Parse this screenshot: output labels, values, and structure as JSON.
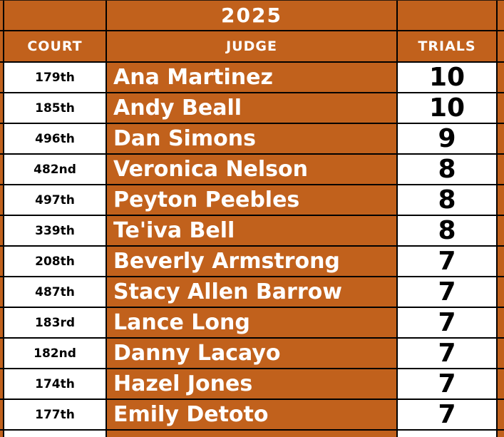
{
  "chart_data": {
    "type": "table",
    "title": "2025",
    "columns": [
      "COURT",
      "JUDGE",
      "TRIALS"
    ],
    "rows": [
      [
        "179th",
        "Ana Martinez",
        10
      ],
      [
        "185th",
        "Andy Beall",
        10
      ],
      [
        "496th",
        "Dan Simons",
        9
      ],
      [
        "482nd",
        "Veronica Nelson",
        8
      ],
      [
        "497th",
        "Peyton Peebles",
        8
      ],
      [
        "339th",
        "Te'iva Bell",
        8
      ],
      [
        "208th",
        "Beverly Armstrong",
        7
      ],
      [
        "487th",
        "Stacy Allen Barrow",
        7
      ],
      [
        "183rd",
        "Lance Long",
        7
      ],
      [
        "182nd",
        "Danny Lacayo",
        7
      ],
      [
        "174th",
        "Hazel Jones",
        7
      ],
      [
        "177th",
        "Emily Detoto",
        7
      ]
    ],
    "layout": {
      "grid": "on",
      "title_position": "merged cell over JUDGE column",
      "court_column_fill": "white",
      "judge_column_fill": "orange",
      "trials_column_fill": "white"
    }
  },
  "colors": {
    "orange": "#C1611C",
    "grid": "#000000",
    "cell-white": "#FFFFFF",
    "text-on-orange": "#FFFFFF",
    "text-on-white": "#000000"
  }
}
